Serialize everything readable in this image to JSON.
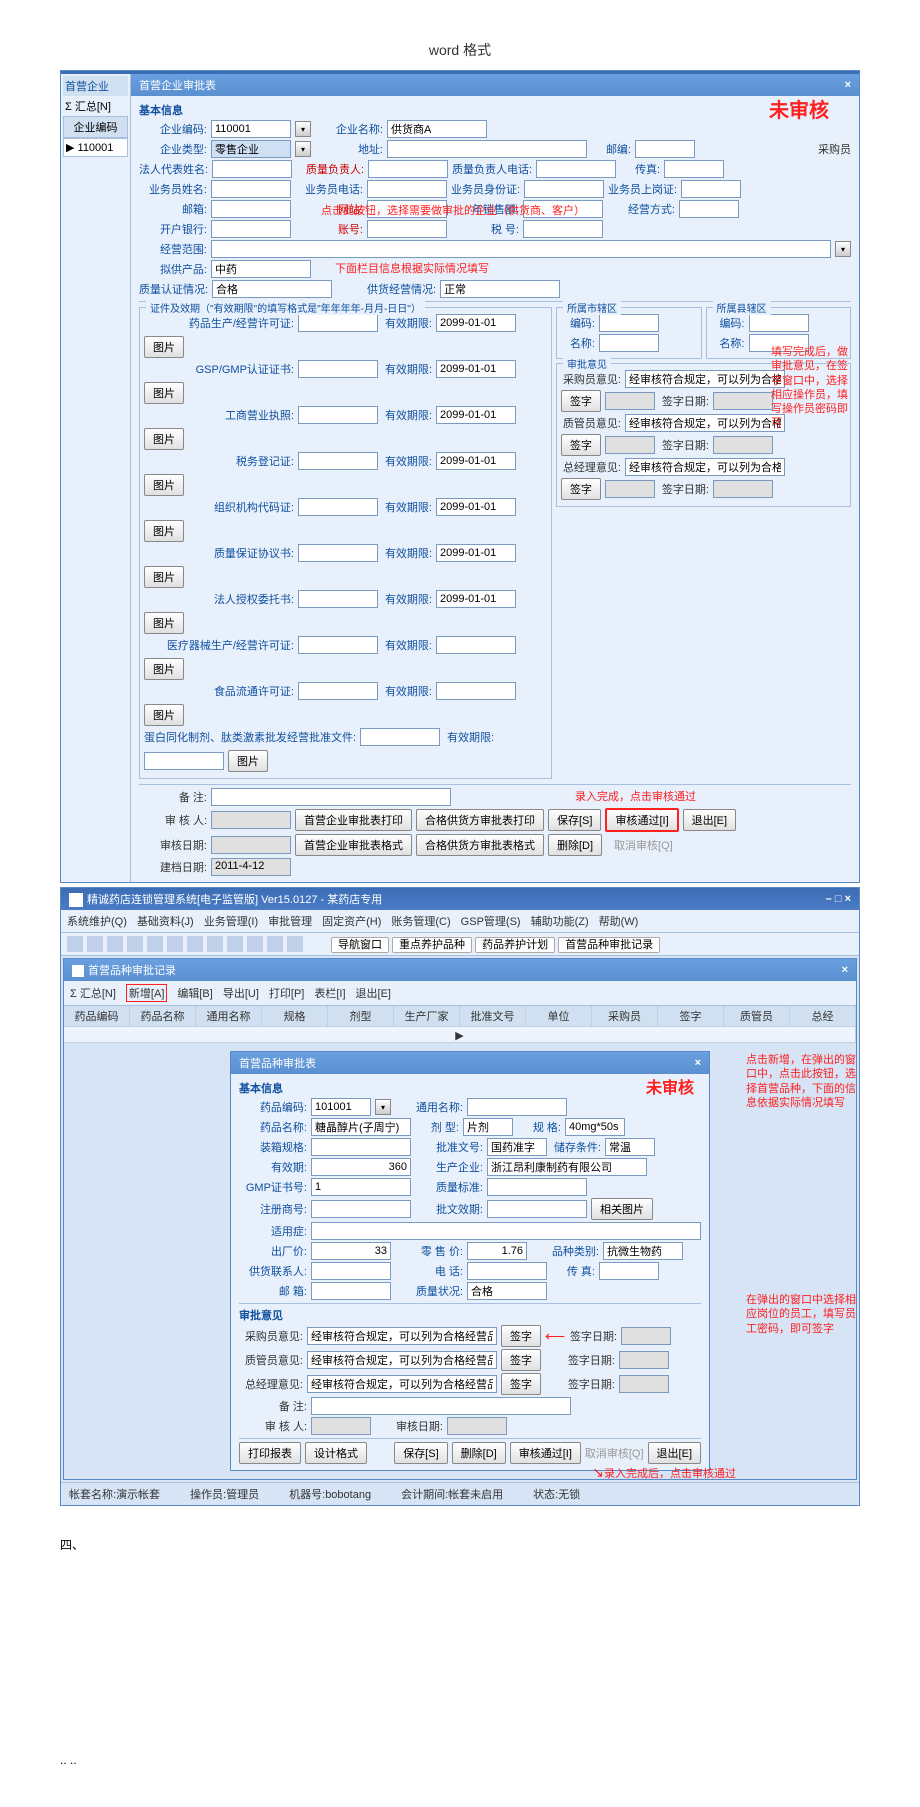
{
  "page_header": "word 格式",
  "window1": {
    "outer_tab": "首营企业",
    "left_sum": "Σ 汇总[N]",
    "left_col_header": "企业编码",
    "left_col_value": "110001",
    "title": "首营企业审批表",
    "status": "未审核",
    "basic_title": "基本信息",
    "fields": {
      "qybm_label": "企业编码:",
      "qybm": "110001",
      "qymc_label": "企业名称:",
      "qymc": "供货商A",
      "qylx_label": "企业类型:",
      "qylx": "零售企业",
      "dz_label": "地址:",
      "yb_label": "邮编:",
      "cgy_label": "采购员",
      "frdb_label": "法人代表姓名:",
      "zlfzr_label": "质量负责人:",
      "zlfzr_tel_label": "质量负责人电话:",
      "cz_label": "传真:",
      "ywy_label": "业务员姓名:",
      "ywy_tel_label": "业务员电话:",
      "ywy_sfz_label": "业务员身份证:",
      "ywy_sgz_label": "业务员上岗证:",
      "yx_label": "邮箱:",
      "wz_label": "网站:",
      "nxse_label": "年销售额:",
      "jyfs_label": "经营方式:",
      "khyh_label": "开户银行:",
      "zh_label": "账号:",
      "sh_label": "税 号:",
      "jyfw_label": "经营范围:",
      "ngcp_label": "拟供产品:",
      "ngcp": "中药",
      "zlrz_label": "质量认证情况:",
      "zlrz": "合格",
      "ggjy_label": "供货经营情况:",
      "ggjy": "正常"
    },
    "annot1": "点击此按钮，选择需要做审批的企业（供货商、客户）",
    "annot2": "下面栏目信息根据实际情况填写",
    "certs": {
      "title": "证件及效期（\"有效期限\"的填写格式是\"年年年年-月月-日日\"）",
      "expire_label": "有效期限:",
      "pic_btn": "图片",
      "date": "2099-01-01",
      "items": [
        "药品生产/经营许可证:",
        "GSP/GMP认证证书:",
        "工商营业执照:",
        "税务登记证:",
        "组织机构代码证:",
        "质量保证协议书:",
        "法人授权委托书:",
        "医疗器械生产/经营许可证:",
        "食品流通许可证:",
        "蛋白同化制剂、肽类激素批发经营批准文件:"
      ]
    },
    "region": {
      "city_title": "所属市辖区",
      "county_title": "所属县辖区",
      "bm_label": "编码:",
      "mc_label": "名称:"
    },
    "opinion": {
      "title": "审批意见",
      "cgy_label": "采购员意见:",
      "cgy_val": "经审核符合规定，可以列为合格供货方",
      "zgy_label": "质管员意见:",
      "zgy_val": "经审核符合规定，可以列为合格供货方",
      "zjl_label": "总经理意见:",
      "zjl_val": "经审核符合规定，可以列为合格供货方",
      "sign_btn": "签字",
      "sign_date_label": "签字日期:"
    },
    "annot3": "填写完成后，做审批意见，在签字窗口中，选择相应操作员，填写操作员密码即可",
    "remark_label": "备 注:",
    "auditor_label": "审 核 人:",
    "audit_date_label": "审核日期:",
    "create_date_label": "建档日期:",
    "create_date": "2011-4-12",
    "btns": {
      "b1": "首营企业审批表打印",
      "b2": "合格供货方审批表打印",
      "b3": "保存[S]",
      "b4": "审核通过[I]",
      "b5": "退出[E]",
      "b6": "首营企业审批表格式",
      "b7": "合格供货方审批表格式",
      "b8": "删除[D]",
      "b9": "取消审核[Q]"
    },
    "annot4": "录入完成，点击审核通过"
  },
  "window2": {
    "app_title": "精诚药店连锁管理系统[电子监管版]  Ver15.0127  -  某药店专用",
    "menus": [
      "系统维护(Q)",
      "基础资料(J)",
      "业务管理(I)",
      "审批管理",
      "固定资产(H)",
      "账务管理(C)",
      "GSP管理(S)",
      "辅助功能(Z)",
      "帮助(W)"
    ],
    "nav_btns": [
      "导航窗口",
      "重点养护品种",
      "药品养护计划",
      "首营品种审批记录"
    ],
    "sub_title": "首营品种审批记录",
    "toolbar2": [
      "Σ 汇总[N]",
      "新增[A]",
      "编辑[B]",
      "导出[U]",
      "打印[P]",
      "表栏[I]",
      "退出[E]"
    ],
    "grid_cols": [
      "药品编码",
      "药品名称",
      "通用名称",
      "规格",
      "剂型",
      "生产厂家",
      "批准文号",
      "单位",
      "采购员",
      "签字",
      "质管员",
      "总经"
    ],
    "popup": {
      "title": "首营品种审批表",
      "status": "未审核",
      "basic": "基本信息",
      "ypbm_label": "药品编码:",
      "ypbm": "101001",
      "tymc_label": "通用名称:",
      "ypmc_label": "药品名称:",
      "ypmc": "糖晶醇片(子周宁)",
      "jx_label": "剂 型:",
      "jx": "片剂",
      "gg_label": "规 格:",
      "gg": "40mg*50s",
      "zxgg_label": "装箱规格:",
      "pzwh_label": "批准文号:",
      "pzwh": "国药准字",
      "cctj_label": "储存条件:",
      "cctj": "常温",
      "yxq_label": "有效期:",
      "yxq": "360",
      "scqy_label": "生产企业:",
      "scqy": "浙江昂利康制药有限公司",
      "gmpzh_label": "GMP证书号:",
      "gmpzh": "1",
      "zlbz_label": "质量标准:",
      "zcsb_label": "注册商号:",
      "pwqx_label": "批文效期:",
      "pic_btn": "相关图片",
      "syz_label": "适用症:",
      "cjj_label": "出厂价:",
      "cjj": "33",
      "lsj_label": "零 售 价:",
      "lsj": "1.76",
      "pzlb_label": "品种类别:",
      "pzlb": "抗微生物药",
      "ghlxr_label": "供货联系人:",
      "dh_label": "电 话:",
      "cz_label": "传 真:",
      "yx_label": "邮 箱:",
      "zlzk_label": "质量状况:",
      "zlzk": "合格",
      "op_title": "审批意见",
      "cgy_label": "采购员意见:",
      "cgy_val": "经审核符合规定，可以列为合格经营品种",
      "zgy_label": "质管员意见:",
      "zgy_val": "经审核符合规定，可以列为合格经营品种",
      "zjl_label": "总经理意见:",
      "zjl_val": "经审核符合规定，可以列为合格经营品种",
      "sign": "签字",
      "sign_date": "签字日期:",
      "bz_label": "备 注:",
      "shr_label": "审 核 人:",
      "shrq_label": "审核日期:",
      "btns": {
        "p": "打印报表",
        "d": "设计格式",
        "s": "保存[S]",
        "del": "删除[D]",
        "pass": "审核通过[I]",
        "cancel": "取消审核[Q]",
        "exit": "退出[E]"
      }
    },
    "annot1": "点击新增，在弹出的窗口中，点击此按钮，选择首营品种，下面的信息依据实际情况填写",
    "annot2": "在弹出的窗口中选择相应岗位的员工，填写员工密码，即可签字",
    "annot3": "录入完成后，点击审核通过",
    "statusbar": {
      "zt_label": "帐套名称:",
      "zt": "演示帐套",
      "czy_label": "操作员:",
      "czy": "管理员",
      "jqh_label": "机器号:",
      "jqh": "bobotang",
      "kjqj_label": "会计期间:",
      "kjqj": "帐套未启用",
      "st_label": "状态:",
      "st": "无锁"
    }
  },
  "section_num": "四、",
  "footer": ".. .."
}
